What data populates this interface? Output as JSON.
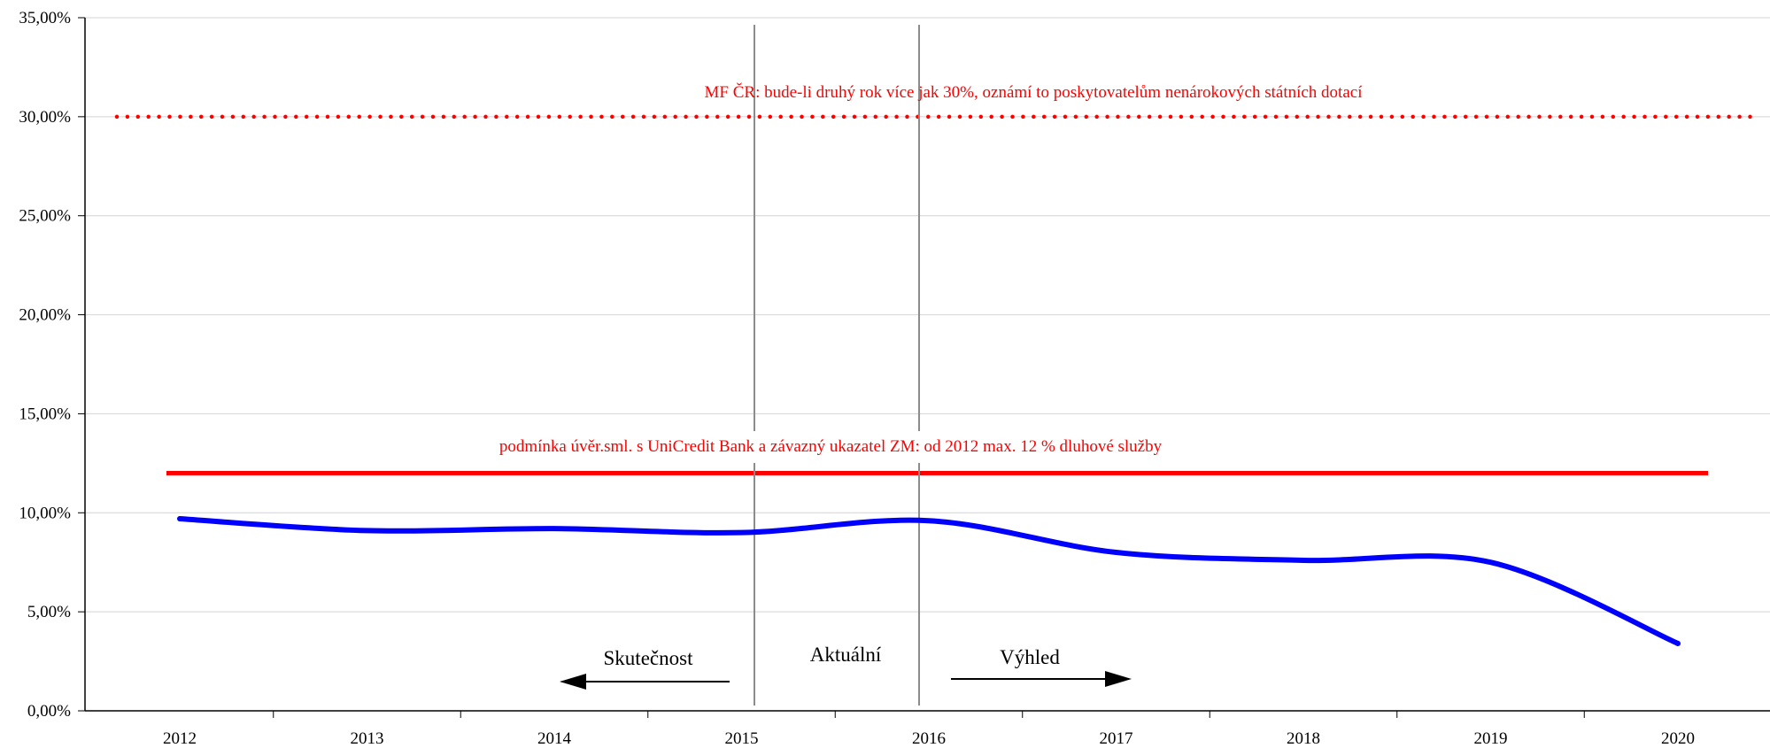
{
  "chart_data": {
    "type": "line",
    "x": [
      "2012",
      "2013",
      "2014",
      "2015",
      "2016",
      "2017",
      "2018",
      "2019",
      "2020"
    ],
    "series": [
      {
        "values": [
          9.7,
          9.1,
          9.2,
          9.0,
          9.6,
          8.0,
          7.6,
          7.5,
          3.4
        ],
        "color": "#0000ff"
      }
    ],
    "reference_lines": [
      {
        "value": 30.0,
        "style": "dotted",
        "color": "#ff0000",
        "label": "MF ČR: bude-li druhý rok více jak 30%, oznámí to poskytovatelům nenárokových státních dotací"
      },
      {
        "value": 12.0,
        "style": "solid",
        "color": "#ff0000",
        "label": "podmínka úvěr.sml. s UniCredit Bank a závazný ukazatel ZM: od 2012 max. 12 % dluhové služby"
      }
    ],
    "period_labels": {
      "actual": "Skutečnost",
      "current": "Aktuální",
      "outlook": "Výhled"
    },
    "y_ticks": [
      "0,00%",
      "5,00%",
      "10,00%",
      "15,00%",
      "20,00%",
      "25,00%",
      "30,00%",
      "35,00%"
    ],
    "ylim": [
      0,
      35
    ],
    "grid": true,
    "title": "",
    "xlabel": "",
    "ylabel": ""
  }
}
